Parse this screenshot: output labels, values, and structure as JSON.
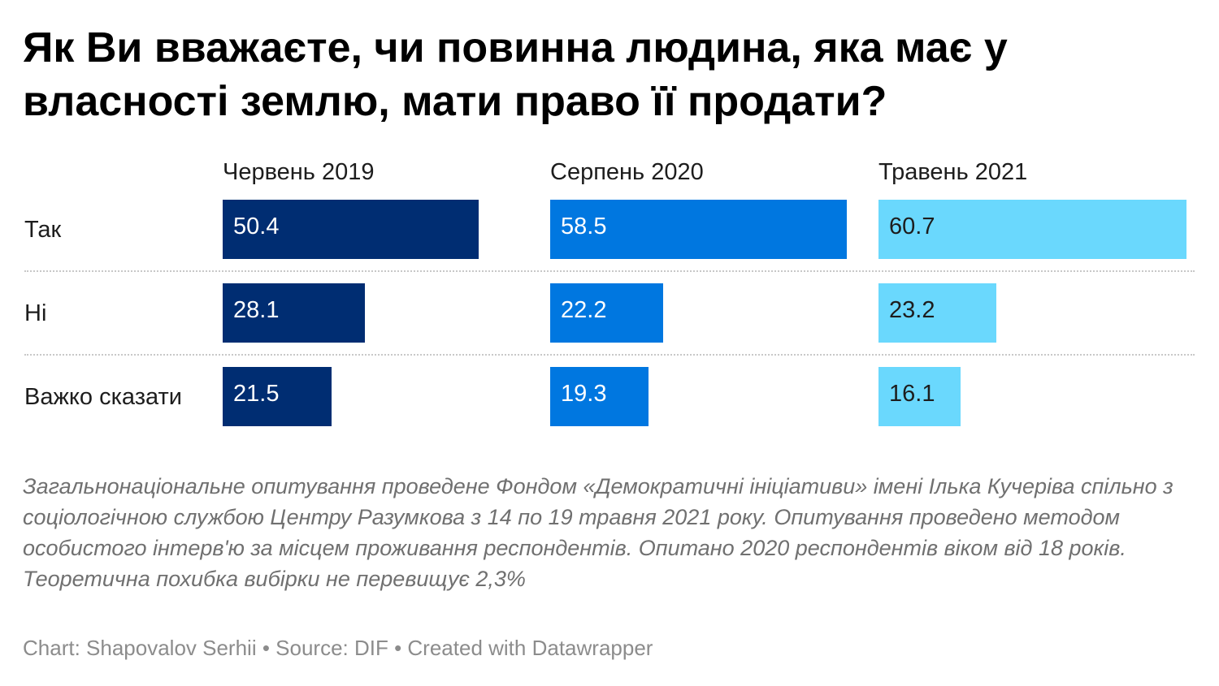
{
  "chart_data": {
    "type": "bar",
    "title": "Як Ви вважаєте, чи повинна людина, яка має у власності землю, мати право її продати?",
    "categories": [
      "Так",
      "Ні",
      "Важко сказати"
    ],
    "series": [
      {
        "name": "Червень 2019",
        "values": [
          50.4,
          28.1,
          21.5
        ],
        "color": "#002d72"
      },
      {
        "name": "Серпень 2020",
        "values": [
          58.5,
          22.2,
          19.3
        ],
        "color": "#0077e0"
      },
      {
        "name": "Травень 2021",
        "values": [
          60.7,
          23.2,
          16.1
        ],
        "color": "#6ad8fd"
      }
    ],
    "xlim": [
      0,
      60.7
    ],
    "grid": false,
    "notes": "Загальнонаціональне опитування проведене Фондом «Демократичні ініціативи» імені Ілька Кучеріва спільно з соціологічною службою Центру Разумкова з 14 по 19 травня 2021 року. Опитування проведено методом особистого інтерв'ю за місцем проживання респондентів. Опитано 2020 респондентів віком від 18 років. Теоретична похибка вибірки не перевищує 2,3%",
    "byline": "Chart: Shapovalov Serhii • Source: DIF • Created with Datawrapper"
  }
}
